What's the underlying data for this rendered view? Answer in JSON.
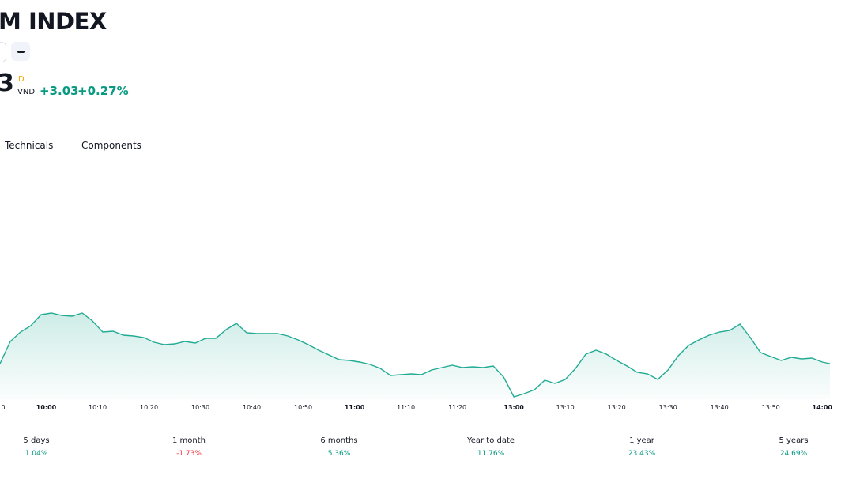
{
  "header": {
    "title": "M INDEX",
    "price": "3",
    "flag": "D",
    "currency": "VND",
    "change": "+3.03",
    "change_percent": "+0.27%"
  },
  "tabs": [
    "Technicals",
    "Components"
  ],
  "chart_data": {
    "type": "area",
    "x": [
      1,
      3,
      5,
      7,
      9,
      11,
      13,
      15,
      17,
      19,
      21,
      23,
      25,
      27,
      29,
      31,
      33,
      35,
      37,
      39,
      41,
      43,
      45,
      47,
      49,
      51,
      53,
      55,
      57,
      59,
      61,
      63,
      65,
      67,
      69,
      71,
      73,
      75,
      77,
      79,
      81,
      83,
      85,
      87,
      89,
      91,
      93,
      95,
      97,
      99,
      101,
      103,
      105,
      107,
      109,
      111,
      113,
      115,
      117,
      119,
      121,
      123,
      125,
      127,
      129,
      131,
      133,
      135,
      137,
      139,
      141,
      143,
      145,
      147,
      149,
      151,
      153,
      155,
      157,
      159,
      161,
      162.5
    ],
    "series": [
      {
        "color": "#22ab94",
        "values": [
          45,
          73,
          85,
          93,
          107,
          109,
          106,
          105,
          109,
          99,
          85,
          86,
          81,
          80,
          78,
          72,
          69,
          70,
          73,
          71,
          77,
          77,
          88,
          96,
          84,
          83,
          83,
          83,
          80,
          75,
          69,
          62,
          56,
          50,
          49,
          47,
          44,
          39,
          30,
          31,
          32,
          31,
          37,
          40,
          43,
          40,
          41,
          40,
          42,
          28,
          3,
          7,
          12,
          24,
          20,
          25,
          39,
          57,
          62,
          57,
          49,
          42,
          34,
          32,
          25,
          37,
          55,
          68,
          75,
          81,
          85,
          87,
          95,
          78,
          59,
          54,
          49,
          53,
          51,
          52,
          47,
          45
        ]
      }
    ],
    "xlim": [
      1,
      162.5
    ],
    "ylim": [
      0,
      305
    ],
    "xticks": [
      {
        "value": 0,
        "label": "0"
      },
      {
        "value": 10,
        "label": "10:00"
      },
      {
        "value": 20,
        "label": "10:10"
      },
      {
        "value": 30,
        "label": "10:20"
      },
      {
        "value": 40,
        "label": "10:30"
      },
      {
        "value": 50,
        "label": "10:40"
      },
      {
        "value": 60,
        "label": "10:50"
      },
      {
        "value": 70,
        "label": "11:00"
      },
      {
        "value": 80,
        "label": "11:10"
      },
      {
        "value": 90,
        "label": "11:20"
      },
      {
        "value": 101,
        "label": "13:00"
      },
      {
        "value": 111,
        "label": "13:10"
      },
      {
        "value": 121,
        "label": "13:20"
      },
      {
        "value": 131,
        "label": "13:30"
      },
      {
        "value": 141,
        "label": "13:40"
      },
      {
        "value": 151,
        "label": "13:50"
      },
      {
        "value": 161,
        "label": "14:00"
      }
    ]
  },
  "periods": [
    {
      "label": "5 days",
      "value": "1.04%",
      "direction": "up"
    },
    {
      "label": "1 month",
      "value": "-1.73%",
      "direction": "down"
    },
    {
      "label": "6 months",
      "value": "5.36%",
      "direction": "up"
    },
    {
      "label": "Year to date",
      "value": "11.76%",
      "direction": "up"
    },
    {
      "label": "1 year",
      "value": "23.43%",
      "direction": "up"
    },
    {
      "label": "5 years",
      "value": "24.69%",
      "direction": "up"
    }
  ]
}
